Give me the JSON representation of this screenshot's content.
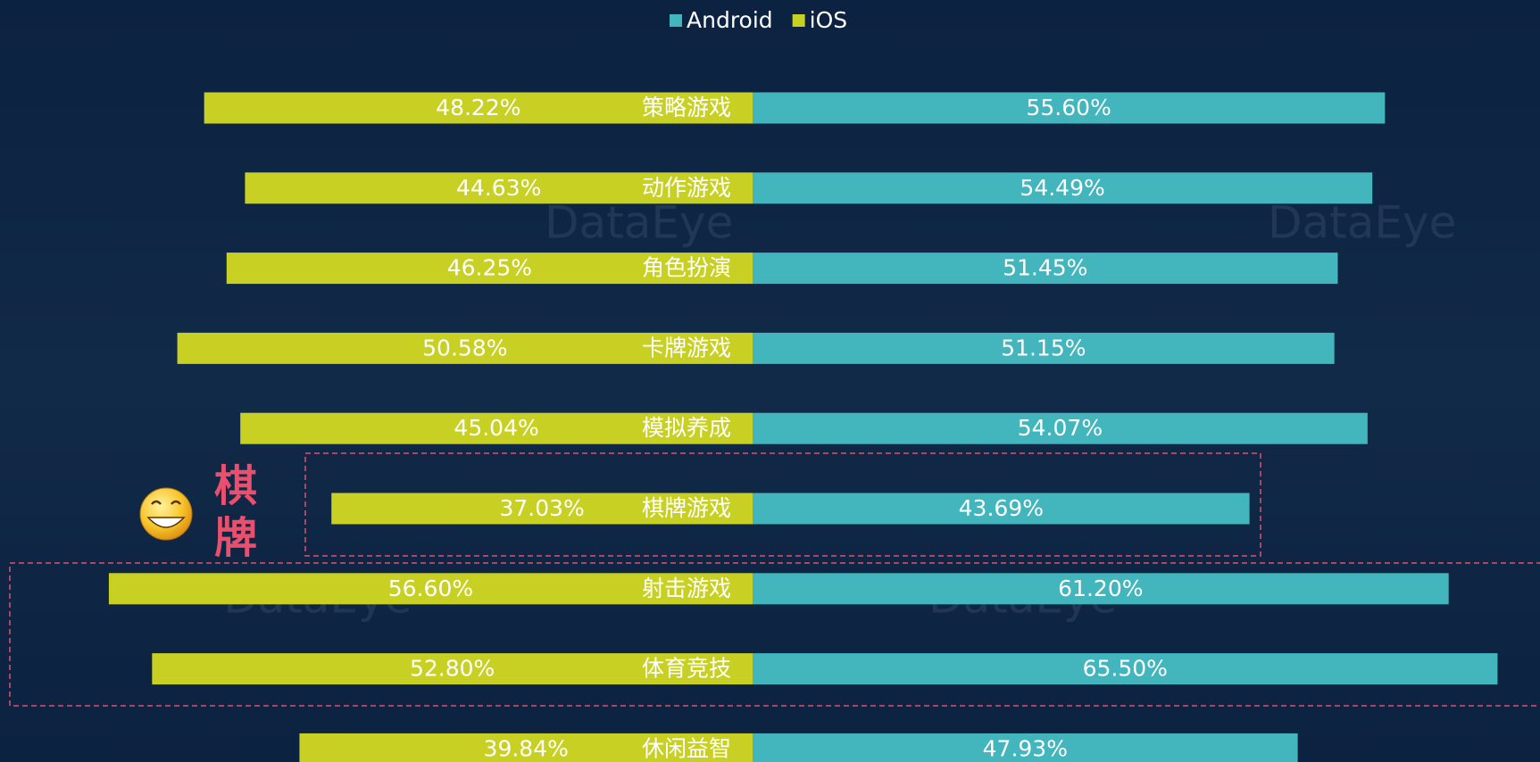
{
  "chart_data": {
    "type": "butterfly-bar",
    "categories": [
      "策略游戏",
      "动作游戏",
      "角色扮演",
      "卡牌游戏",
      "模拟养成",
      "棋牌游戏",
      "射击游戏",
      "体育竞技",
      "休闲益智"
    ],
    "series": [
      {
        "name": "Android",
        "color": "#42b5bd",
        "side": "right",
        "values": [
          55.6,
          54.49,
          51.45,
          51.15,
          54.07,
          43.69,
          61.2,
          65.5,
          47.93
        ],
        "value_labels": [
          "55.60%",
          "54.49%",
          "51.45%",
          "51.15%",
          "54.07%",
          "43.69%",
          "61.20%",
          "65.50%",
          "47.93%"
        ]
      },
      {
        "name": "iOS",
        "color": "#c8d023",
        "side": "left",
        "values": [
          48.22,
          44.63,
          46.25,
          50.58,
          45.04,
          37.03,
          56.6,
          52.8,
          39.84
        ],
        "value_labels": [
          "48.22%",
          "44.63%",
          "46.25%",
          "50.58%",
          "45.04%",
          "37.03%",
          "56.60%",
          "52.80%",
          "39.84%"
        ]
      }
    ],
    "legend": "top",
    "annotation": "棋牌",
    "watermark": "DataEye"
  }
}
